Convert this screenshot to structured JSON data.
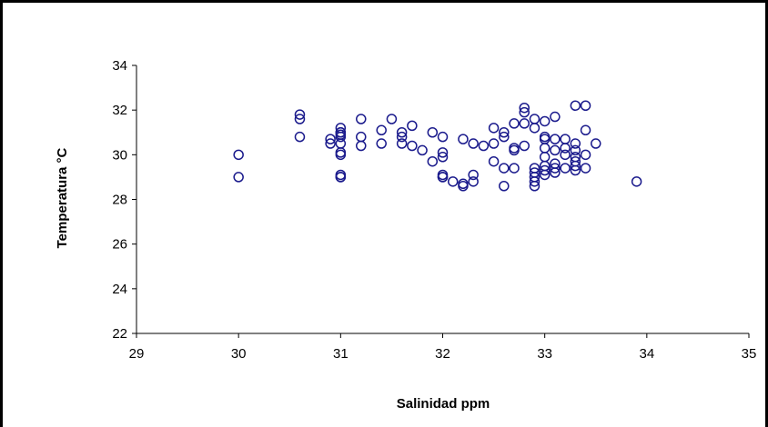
{
  "chart_data": {
    "type": "scatter",
    "title": "",
    "xlabel": "Salinidad ppm",
    "ylabel": "Temperatura °C",
    "xlim": [
      29,
      35
    ],
    "ylim": [
      22,
      34
    ],
    "xticks": [
      29,
      30,
      31,
      32,
      33,
      34,
      35
    ],
    "yticks": [
      22,
      24,
      26,
      28,
      30,
      32,
      34
    ],
    "grid": false,
    "legend": "none",
    "marker": "open-circle",
    "marker_color": "#1a1a8c",
    "series": [
      {
        "x": [
          30.0,
          30.0,
          30.6,
          30.6,
          30.6,
          30.9,
          30.9,
          31.0,
          31.0,
          31.0,
          31.0,
          31.0,
          31.0,
          31.0,
          31.0,
          31.0,
          31.0,
          31.0,
          31.2,
          31.2,
          31.2,
          31.4,
          31.4,
          31.5,
          31.6,
          31.6,
          31.6,
          31.7,
          31.7,
          31.8,
          31.9,
          31.9,
          32.0,
          32.0,
          32.0,
          32.0,
          32.0,
          32.0,
          32.1,
          32.2,
          32.2,
          32.2,
          32.3,
          32.3,
          32.3,
          32.4,
          32.5,
          32.5,
          32.5,
          32.6,
          32.6,
          32.6,
          32.6,
          32.7,
          32.7,
          32.7,
          32.7,
          32.8,
          32.8,
          32.8,
          32.8,
          32.9,
          32.9,
          32.9,
          32.9,
          32.9,
          32.9,
          32.9,
          33.0,
          33.0,
          33.0,
          33.0,
          33.0,
          33.0,
          33.0,
          33.0,
          33.1,
          33.1,
          33.1,
          33.1,
          33.1,
          33.1,
          33.2,
          33.2,
          33.2,
          33.2,
          33.3,
          33.3,
          33.3,
          33.3,
          33.3,
          33.3,
          33.3,
          33.4,
          33.4,
          33.4,
          33.4,
          33.5,
          33.9
        ],
        "y": [
          30.0,
          29.0,
          31.8,
          31.6,
          30.8,
          30.7,
          30.5,
          31.2,
          31.0,
          30.9,
          30.8,
          30.5,
          30.1,
          30.0,
          29.1,
          29.0,
          29.0,
          31.0,
          30.8,
          30.4,
          31.6,
          31.1,
          30.5,
          31.6,
          31.0,
          30.8,
          30.5,
          30.4,
          31.3,
          30.2,
          29.7,
          31.0,
          30.8,
          30.1,
          29.9,
          29.1,
          29.0,
          29.0,
          28.8,
          30.7,
          28.7,
          28.6,
          30.5,
          29.1,
          28.8,
          30.4,
          31.2,
          30.5,
          29.7,
          31.0,
          30.8,
          29.4,
          28.6,
          31.4,
          30.3,
          30.2,
          29.4,
          32.1,
          31.9,
          31.4,
          30.4,
          31.6,
          31.2,
          29.4,
          29.2,
          29.0,
          28.8,
          28.6,
          31.5,
          30.8,
          30.7,
          30.3,
          29.9,
          29.5,
          29.3,
          29.1,
          31.7,
          30.7,
          30.2,
          29.6,
          29.4,
          29.2,
          30.7,
          30.3,
          30.0,
          29.4,
          32.2,
          30.5,
          30.2,
          29.9,
          29.7,
          29.5,
          29.3,
          32.2,
          31.1,
          30.0,
          29.4,
          30.5,
          28.8
        ]
      }
    ]
  }
}
